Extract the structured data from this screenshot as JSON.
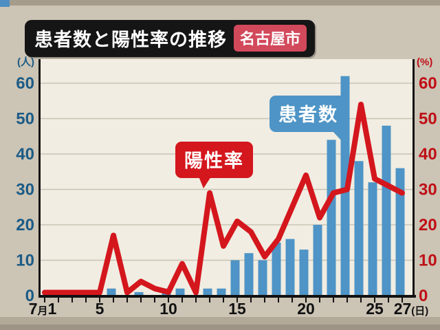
{
  "header": {
    "title": "患者数と陽性率の推移",
    "city_badge": "名古屋市"
  },
  "colors": {
    "background": "#ccc4b5",
    "plot_bg": "#f1ede2",
    "grid": "#c9c3b4",
    "axis": "#111111",
    "bar_blue": "#4e94c6",
    "line_red": "#d4161d",
    "left_label_blue": "#1b5b86",
    "right_label_red": "#bf0f16",
    "title_bg": "#151515",
    "badge_red": "#d2495b"
  },
  "chart_data": {
    "type": "bar+line",
    "title": "患者数と陽性率の推移",
    "region": "名古屋市",
    "grid": true,
    "x_axis": {
      "month_prefix": "7月",
      "days": [
        1,
        2,
        3,
        4,
        5,
        6,
        7,
        8,
        9,
        10,
        11,
        12,
        13,
        14,
        15,
        16,
        17,
        18,
        19,
        20,
        21,
        22,
        23,
        24,
        25,
        26,
        27
      ],
      "labeled_ticks": [
        {
          "day": 1,
          "label": "7月1"
        },
        {
          "day": 5,
          "label": "5"
        },
        {
          "day": 10,
          "label": "10"
        },
        {
          "day": 15,
          "label": "15"
        },
        {
          "day": 20,
          "label": "20"
        },
        {
          "day": 25,
          "label": "25"
        },
        {
          "day": 27,
          "label": "27(日)"
        }
      ]
    },
    "left_axis": {
      "unit": "(人)",
      "min": 0,
      "max": 60,
      "step": 10,
      "color": "#1b5b86"
    },
    "right_axis": {
      "unit": "(%)",
      "min": 0,
      "max": 60,
      "step": 10,
      "color": "#bf0f16"
    },
    "series": [
      {
        "name": "患者数",
        "type": "bar",
        "axis": "left",
        "unit": "人",
        "color": "#4e94c6",
        "values": [
          0,
          0,
          0,
          0,
          0,
          2,
          0,
          1,
          0,
          2,
          2,
          0,
          2,
          2,
          10,
          12,
          10,
          15,
          16,
          13,
          20,
          44,
          62,
          38,
          32,
          48,
          36
        ]
      },
      {
        "name": "陽性率",
        "type": "line",
        "axis": "right",
        "unit": "%",
        "color": "#d4161d",
        "values": [
          0,
          0,
          0,
          0,
          0,
          17,
          0,
          4,
          2,
          1,
          9,
          0,
          29,
          14,
          21,
          18,
          11,
          16,
          25,
          34,
          22,
          29,
          30,
          54,
          33,
          31,
          29
        ]
      }
    ],
    "callouts": {
      "patients": "患者数",
      "positive_rate": "陽性率"
    }
  }
}
